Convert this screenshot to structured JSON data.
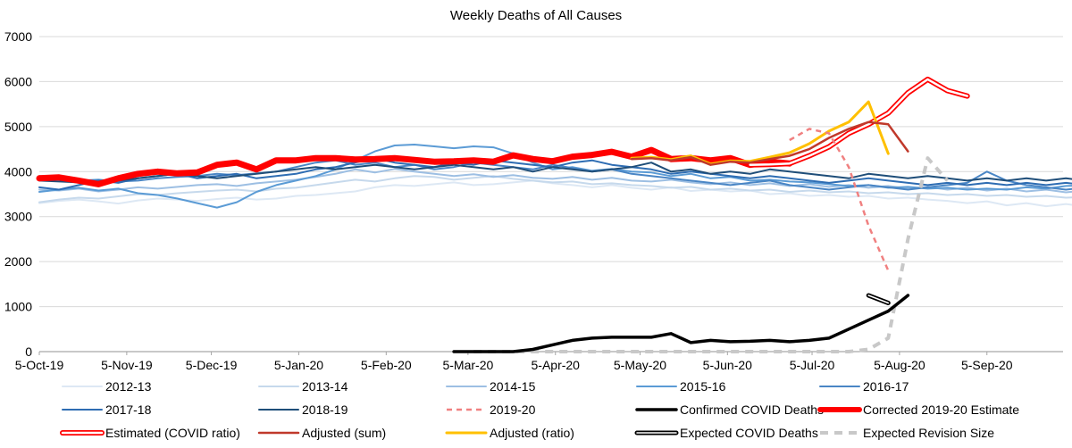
{
  "chart_data": {
    "type": "line",
    "title": "Weekly Deaths of All Causes",
    "xlabel": "",
    "ylabel": "",
    "ylim": [
      0,
      7000
    ],
    "yticks": [
      0,
      1000,
      2000,
      3000,
      4000,
      5000,
      6000,
      7000
    ],
    "xlim": [
      "2019-10-05",
      "2020-10-02"
    ],
    "xticks": [
      "5-Oct-19",
      "5-Nov-19",
      "5-Dec-19",
      "5-Jan-20",
      "5-Feb-20",
      "5-Mar-20",
      "5-Apr-20",
      "5-May-20",
      "5-Jun-20",
      "5-Jul-20",
      "5-Aug-20",
      "5-Sep-20"
    ],
    "xtick_dates": [
      "2019-10-05",
      "2019-11-05",
      "2019-12-05",
      "2020-01-05",
      "2020-02-05",
      "2020-03-05",
      "2020-04-05",
      "2020-05-05",
      "2020-06-05",
      "2020-07-05",
      "2020-08-05",
      "2020-09-05"
    ],
    "grid": "horizontal",
    "legend_position": "bottom",
    "series": [
      {
        "name": "2012-13",
        "color": "#dde8f4",
        "width": 2,
        "dash": "",
        "start": "2019-10-05",
        "values": [
          3300,
          3350,
          3380,
          3340,
          3290,
          3360,
          3400,
          3380,
          3350,
          3390,
          3420,
          3380,
          3400,
          3460,
          3480,
          3520,
          3560,
          3650,
          3700,
          3680,
          3720,
          3760,
          3700,
          3720,
          3760,
          3800,
          3740,
          3700,
          3650,
          3700,
          3640,
          3600,
          3650,
          3570,
          3600,
          3560,
          3580,
          3500,
          3520,
          3460,
          3480,
          3440,
          3460,
          3400,
          3420,
          3380,
          3350,
          3300,
          3340,
          3250,
          3300,
          3230,
          3280,
          3220,
          3200,
          3250,
          3200,
          3180,
          3220,
          3200,
          3230,
          3200
        ]
      },
      {
        "name": "2013-14",
        "color": "#c6d9ec",
        "width": 2,
        "dash": "",
        "start": "2019-10-05",
        "values": [
          3320,
          3380,
          3420,
          3400,
          3450,
          3500,
          3480,
          3520,
          3550,
          3580,
          3600,
          3560,
          3620,
          3640,
          3700,
          3760,
          3820,
          3780,
          3850,
          3900,
          3880,
          3820,
          3860,
          3900,
          3840,
          3800,
          3760,
          3780,
          3720,
          3740,
          3700,
          3680,
          3640,
          3660,
          3600,
          3620,
          3580,
          3600,
          3550,
          3580,
          3540,
          3560,
          3520,
          3540,
          3500,
          3520,
          3480,
          3500,
          3460,
          3480,
          3440,
          3460,
          3420,
          3440,
          3400,
          3420,
          3380,
          3400,
          3360,
          3380,
          3340,
          3360
        ]
      },
      {
        "name": "2014-15",
        "color": "#9dbfe3",
        "width": 2,
        "dash": "",
        "start": "2019-10-05",
        "values": [
          3600,
          3580,
          3620,
          3560,
          3600,
          3650,
          3620,
          3660,
          3700,
          3720,
          3680,
          3740,
          3780,
          3820,
          3880,
          3950,
          4050,
          3980,
          4060,
          4000,
          3950,
          3900,
          3940,
          3880,
          3920,
          3860,
          3840,
          3880,
          3820,
          3860,
          3800,
          3780,
          3820,
          3760,
          3720,
          3760,
          3700,
          3740,
          3680,
          3720,
          3660,
          3700,
          3640,
          3680,
          3620,
          3660,
          3600,
          3640,
          3580,
          3620,
          3560,
          3600,
          3540,
          3580,
          3520,
          3560,
          3500,
          3540,
          3480,
          3520,
          3500,
          3540
        ]
      },
      {
        "name": "2015-16",
        "color": "#5b9bd5",
        "width": 2,
        "dash": "",
        "start": "2019-10-05",
        "values": [
          3550,
          3600,
          3640,
          3580,
          3620,
          3520,
          3480,
          3400,
          3300,
          3200,
          3320,
          3550,
          3700,
          3800,
          3900,
          4050,
          4250,
          4450,
          4580,
          4600,
          4560,
          4520,
          4560,
          4540,
          4400,
          4200,
          4050,
          4100,
          4020,
          4060,
          4000,
          3980,
          3900,
          3950,
          3850,
          3880,
          3800,
          3820,
          3780,
          3760,
          3720,
          3680,
          3700,
          3640,
          3660,
          3620,
          3640,
          3600,
          3620,
          3600,
          3650,
          3620,
          3680,
          3700,
          3750,
          3800,
          3850,
          3900,
          3950,
          4000,
          3950,
          3850
        ]
      },
      {
        "name": "2016-17",
        "color": "#4a86c5",
        "width": 2,
        "dash": "",
        "start": "2019-10-05",
        "values": [
          3900,
          3850,
          3800,
          3820,
          3780,
          3800,
          3850,
          3880,
          3900,
          3950,
          3920,
          3960,
          4000,
          4100,
          4200,
          4250,
          4150,
          4200,
          4100,
          4150,
          4050,
          4100,
          4200,
          4150,
          4100,
          4050,
          4150,
          4080,
          4000,
          4050,
          3950,
          3900,
          3850,
          3800,
          3750,
          3700,
          3750,
          3800,
          3700,
          3650,
          3600,
          3650,
          3700,
          3650,
          3600,
          3650,
          3700,
          3750,
          4000,
          3800,
          3700,
          3650,
          3600,
          3650,
          3700,
          3650,
          3600,
          3650,
          3700,
          3650,
          3600,
          3650
        ]
      },
      {
        "name": "2017-18",
        "color": "#2e6db3",
        "width": 2,
        "dash": "",
        "start": "2019-10-05",
        "values": [
          3650,
          3600,
          3700,
          3800,
          3750,
          3850,
          3900,
          3950,
          3850,
          3900,
          3950,
          3850,
          3900,
          3950,
          4050,
          4100,
          4200,
          4300,
          4200,
          4150,
          4100,
          4200,
          4150,
          4250,
          4200,
          4150,
          4100,
          4200,
          4250,
          4150,
          4100,
          4050,
          3950,
          4000,
          3950,
          3900,
          3850,
          3900,
          3850,
          3800,
          3750,
          3800,
          3850,
          3800,
          3750,
          3700,
          3750,
          3700,
          3750,
          3700,
          3750,
          3700,
          3750,
          3700,
          3750,
          3800,
          3750,
          3700,
          3750,
          3800,
          3750,
          3700
        ]
      },
      {
        "name": "2018-19",
        "color": "#1f4e79",
        "width": 2,
        "dash": "",
        "start": "2019-10-05",
        "values": [
          3800,
          3780,
          3760,
          3740,
          3800,
          3850,
          3900,
          3950,
          3900,
          3850,
          3900,
          3950,
          4000,
          4050,
          4100,
          4050,
          4100,
          4150,
          4100,
          4050,
          4100,
          4150,
          4100,
          4050,
          4100,
          4000,
          4100,
          4050,
          4000,
          4050,
          4100,
          4200,
          4000,
          4050,
          3950,
          4000,
          3950,
          4050,
          4000,
          3950,
          3900,
          3850,
          3950,
          3900,
          3850,
          3900,
          3850,
          3800,
          3850,
          3800,
          3850,
          3800,
          3850,
          3800,
          3750,
          3800,
          3850,
          3800,
          3750,
          3800,
          3750,
          3800
        ]
      },
      {
        "name": "2019-20",
        "color": "#f08080",
        "width": 2.5,
        "dash": "6 5",
        "start": "2020-06-27",
        "values": [
          4700,
          4950,
          4850,
          4100,
          2800,
          1800
        ]
      },
      {
        "name": "Confirmed COVID Deaths",
        "color": "#000000",
        "width": 3.5,
        "dash": "",
        "start": "2020-02-29",
        "values": [
          0,
          0,
          0,
          0,
          50,
          150,
          250,
          300,
          320,
          320,
          320,
          400,
          200,
          250,
          220,
          230,
          250,
          220,
          250,
          300,
          500,
          700,
          900,
          1250
        ]
      },
      {
        "name": "Corrected 2019-20 Estimate",
        "color": "#ff0000",
        "width": 7,
        "dash": "",
        "start": "2019-10-05",
        "values": [
          3850,
          3870,
          3800,
          3720,
          3850,
          3950,
          4000,
          3960,
          3980,
          4150,
          4200,
          4050,
          4250,
          4250,
          4300,
          4300,
          4270,
          4280,
          4300,
          4260,
          4220,
          4230,
          4250,
          4220,
          4360,
          4280,
          4230,
          4330,
          4370,
          4440,
          4330,
          4480,
          4280,
          4300,
          4250,
          4300,
          4150,
          4220,
          4180
        ]
      },
      {
        "name": "Estimated (COVID ratio)",
        "color": "#ff0000",
        "width": 6,
        "dash": "",
        "outline": "#ffffff",
        "start": "2020-06-13",
        "values": [
          4150,
          4160,
          4180,
          4350,
          4550,
          4850,
          5050,
          5300,
          5750,
          6050,
          5800,
          5680
        ]
      },
      {
        "name": "Adjusted (sum)",
        "color": "#c0392b",
        "width": 2.5,
        "dash": "",
        "start": "2020-05-02",
        "values": [
          4280,
          4300,
          4250,
          4320,
          4150,
          4220,
          4200,
          4280,
          4350,
          4500,
          4750,
          4950,
          5100,
          5050,
          4450
        ]
      },
      {
        "name": "Adjusted (ratio)",
        "color": "#ffc000",
        "width": 3,
        "dash": "",
        "start": "2020-05-02",
        "values": [
          4300,
          4320,
          4270,
          4350,
          4170,
          4240,
          4230,
          4320,
          4420,
          4620,
          4900,
          5100,
          5550,
          4400
        ]
      },
      {
        "name": "Expected COVID Deaths",
        "color": "#000000",
        "width": 5,
        "dash": "",
        "outline": "#ffffff",
        "start": "2020-07-25",
        "values": [
          1250,
          1080
        ]
      },
      {
        "name": "Expected Revision Size",
        "color": "#c8c8c8",
        "width": 4,
        "dash": "9 7",
        "start": "2020-03-07",
        "values": [
          0,
          0,
          0,
          0,
          0,
          0,
          0,
          0,
          0,
          0,
          0,
          0,
          0,
          0,
          0,
          0,
          0,
          0,
          0,
          0,
          50,
          300,
          2500,
          4300,
          3800
        ]
      }
    ]
  }
}
